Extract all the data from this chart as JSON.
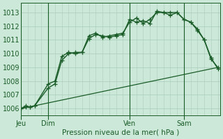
{
  "bg_color": "#cce8d8",
  "grid_color": "#aaccbb",
  "line_color": "#1a5c28",
  "title": "Pression niveau de la mer( hPa )",
  "ylim": [
    1005.5,
    1013.7
  ],
  "yticks": [
    1006,
    1007,
    1008,
    1009,
    1010,
    1011,
    1012,
    1013
  ],
  "xlim": [
    0,
    88
  ],
  "day_labels": [
    "Jeu",
    "Dim",
    "Ven",
    "Sam"
  ],
  "day_positions": [
    0,
    12,
    48,
    72
  ],
  "vline_positions": [
    0,
    12,
    48,
    72
  ],
  "line1": {
    "x": [
      0,
      2,
      4,
      6,
      12,
      15,
      18,
      21,
      24,
      27,
      30,
      33,
      36,
      39,
      42,
      45,
      48,
      51,
      54,
      57,
      60,
      63,
      66,
      69,
      72,
      75,
      78,
      81,
      84,
      87
    ],
    "y": [
      1006.0,
      1006.2,
      1006.1,
      1006.2,
      1007.8,
      1008.0,
      1009.8,
      1010.1,
      1010.0,
      1010.1,
      1011.3,
      1011.5,
      1011.2,
      1011.3,
      1011.4,
      1011.5,
      1012.3,
      1012.6,
      1012.2,
      1012.5,
      1013.0,
      1013.0,
      1013.0,
      1013.0,
      1012.5,
      1012.3,
      1011.8,
      1011.0,
      1009.7,
      1008.9
    ]
  },
  "line2": {
    "x": [
      0,
      2,
      4,
      6,
      12,
      15,
      18,
      21,
      24,
      27,
      30,
      33,
      36,
      39,
      42,
      45,
      48,
      51,
      54,
      57,
      60,
      63,
      66,
      69,
      72,
      75,
      78,
      81,
      84,
      87
    ],
    "y": [
      1006.0,
      1006.1,
      1006.1,
      1006.2,
      1007.5,
      1007.8,
      1009.5,
      1010.0,
      1010.1,
      1010.1,
      1011.1,
      1011.4,
      1011.3,
      1011.2,
      1011.3,
      1011.4,
      1012.5,
      1012.3,
      1012.4,
      1012.2,
      1013.1,
      1013.0,
      1012.8,
      1013.0,
      1012.5,
      1012.3,
      1011.7,
      1011.0,
      1009.6,
      1009.0
    ]
  },
  "line3": {
    "x": [
      0,
      87
    ],
    "y": [
      1006.0,
      1009.0
    ]
  }
}
